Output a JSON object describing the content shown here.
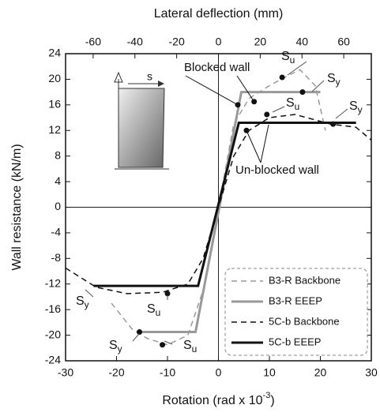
{
  "chart_data": {
    "type": "line",
    "x_label": "Rotation (rad x 10",
    "x_label_sup": "-3",
    "x_label_end": ")",
    "x2_label": "Lateral deflection (mm)",
    "y_label": "Wall resistance (kN/m)",
    "xlim": [
      -30,
      30
    ],
    "xticks": [
      -30,
      -20,
      -10,
      0,
      10,
      20,
      30
    ],
    "x2lim": [
      -73.2,
      73.2
    ],
    "x2ticks": [
      -60,
      -40,
      -20,
      0,
      20,
      40,
      60
    ],
    "ylim": [
      -24,
      24
    ],
    "yticks": [
      -24,
      -20,
      -16,
      -12,
      -8,
      -4,
      0,
      4,
      8,
      12,
      16,
      20,
      24
    ],
    "series": [
      {
        "name": "B3-R Backbone",
        "color": "#999999",
        "dash": "dashed",
        "x": [
          -21,
          -17,
          -14,
          -10,
          -6,
          -3,
          0,
          3,
          6,
          10,
          13,
          16,
          19,
          21
        ],
        "values": [
          -15,
          -19,
          -20.5,
          -21.5,
          -20,
          -13,
          0,
          13,
          17,
          19,
          20.3,
          21.5,
          19,
          12
        ]
      },
      {
        "name": "B3-R EEEP",
        "color": "#999999",
        "dash": "solid",
        "x": [
          -15.5,
          -4.5,
          4.5,
          20
        ],
        "values": [
          -19.5,
          -19.5,
          18,
          18
        ]
      },
      {
        "name": "5C-b Backbone",
        "color": "#111111",
        "dash": "dashed",
        "x": [
          -30,
          -24,
          -18,
          -11,
          -6,
          -3,
          0,
          3,
          6,
          10,
          15,
          22,
          27,
          30
        ],
        "values": [
          -9.5,
          -12.5,
          -13.5,
          -13.3,
          -12,
          -8,
          0,
          8,
          12,
          14,
          14.5,
          13,
          12.5,
          10.5
        ]
      },
      {
        "name": "5C-b EEEP",
        "color": "#111111",
        "dash": "solid",
        "x": [
          -24.5,
          -4,
          4,
          27
        ],
        "values": [
          -12.3,
          -12.3,
          13.2,
          13.2
        ]
      }
    ],
    "markers": {
      "x": [
        12.5,
        16.5,
        9.5,
        22.5,
        3.8,
        7,
        5.5,
        -15.5,
        -11,
        -10
      ],
      "values": [
        20.3,
        18,
        14.5,
        13,
        16,
        16.5,
        12,
        -19.5,
        -21.5,
        -13.5
      ]
    },
    "annotations": [
      {
        "text": "Blocked wall"
      },
      {
        "text": "Un-blocked wall"
      },
      {
        "text": "S",
        "sub": "u"
      },
      {
        "text": "S",
        "sub": "y"
      },
      {
        "text": "S",
        "sub": "u"
      },
      {
        "text": "S",
        "sub": "y"
      },
      {
        "text": "S",
        "sub": "y"
      },
      {
        "text": "S",
        "sub": "u"
      },
      {
        "text": "S",
        "sub": "y"
      },
      {
        "text": "S",
        "sub": "u"
      }
    ],
    "inset_label": "s"
  }
}
